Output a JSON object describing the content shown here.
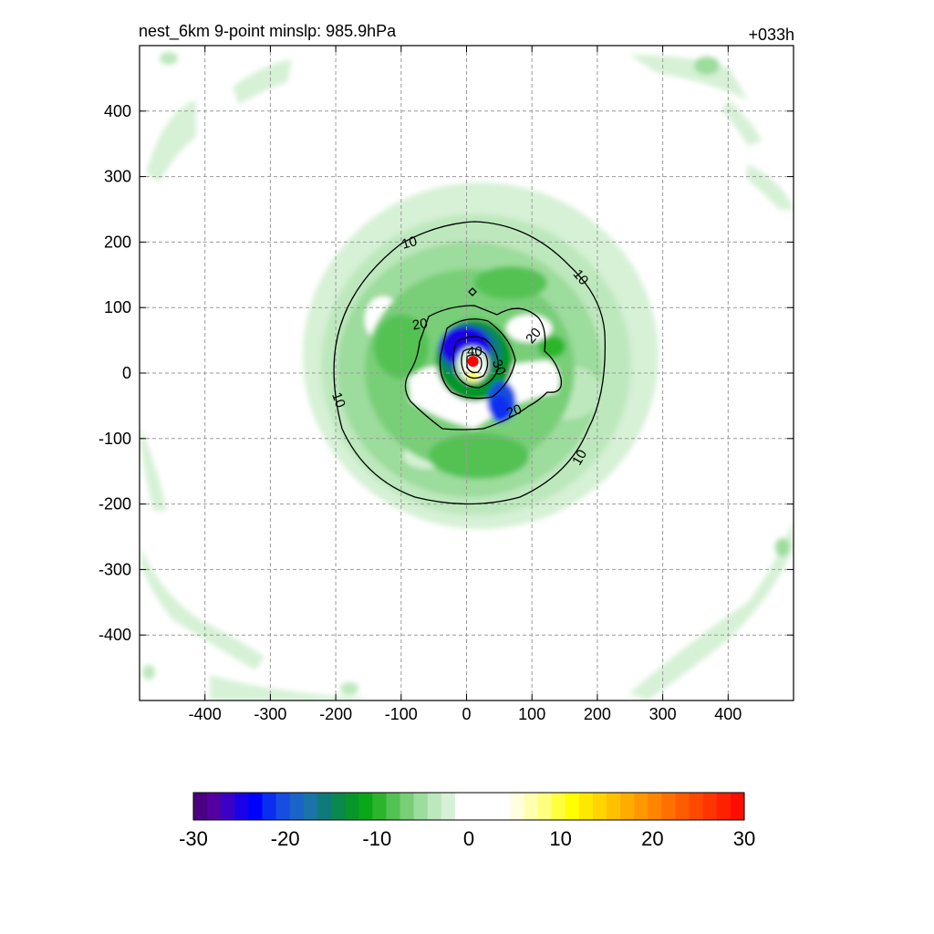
{
  "chart_data": {
    "type": "heatmap",
    "title_left": "nest_6km  9-point minslp: 985.9hPa",
    "title_right": "+033h",
    "xlabel": "",
    "ylabel": "",
    "xlim": [
      -500,
      500
    ],
    "ylim": [
      -500,
      500
    ],
    "xticks": [
      -400,
      -300,
      -200,
      -100,
      0,
      100,
      200,
      300,
      400
    ],
    "yticks": [
      400,
      300,
      200,
      100,
      0,
      -100,
      -200,
      -300,
      -400
    ],
    "grid": "dashed",
    "colorbar": {
      "min": -30,
      "max": 30,
      "ticks": [
        -30,
        -20,
        -10,
        0,
        10,
        20,
        30
      ],
      "colors": [
        "#4b0082",
        "#5200a0",
        "#3a00c8",
        "#1a00e6",
        "#0000ff",
        "#0a2ef0",
        "#154ee0",
        "#1a64c8",
        "#1a74a8",
        "#0f7a7a",
        "#0a8850",
        "#06962a",
        "#08a818",
        "#2cb52c",
        "#52c252",
        "#78cf78",
        "#9cdc9c",
        "#bde8bd",
        "#d6f1d6",
        "#ffffff",
        "#ffffff",
        "#ffffff",
        "#ffffff",
        "#ffffe0",
        "#ffffb0",
        "#ffff80",
        "#ffff40",
        "#ffff00",
        "#ffe800",
        "#ffd400",
        "#ffc000",
        "#ffac00",
        "#ff9800",
        "#ff8400",
        "#ff7000",
        "#ff5c00",
        "#ff4800",
        "#ff3400",
        "#ff2000",
        "#ff0c00"
      ]
    },
    "contour_levels": [
      10,
      20,
      30,
      40
    ],
    "contour_labels": [
      "10",
      "20",
      "30",
      "40"
    ],
    "center_marker": {
      "x": 10,
      "y": 18,
      "color": "#ff0000"
    }
  }
}
